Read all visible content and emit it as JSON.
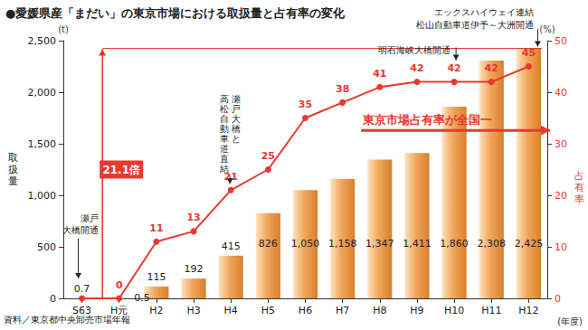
{
  "chart_data": {
    "type": "bar",
    "title": "●愛媛県産「まだい」の東京市場における取扱量と占有率の変化",
    "categories": [
      "S63",
      "H元",
      "H2",
      "H3",
      "H4",
      "H5",
      "H6",
      "H7",
      "H8",
      "H9",
      "H10",
      "H11",
      "H12"
    ],
    "x_label": "(年度)",
    "y_label": "取扱量",
    "y_unit": "(t)",
    "y2_label": "占有率",
    "y2_unit": "(%)",
    "series": [
      {
        "type": "bar",
        "color": "#f2a65a",
        "values": [
          0.7,
          0.5,
          115,
          192,
          415,
          826,
          1050,
          1158,
          1347,
          1411,
          1860,
          2308,
          2425
        ],
        "value_labels": [
          "0.7",
          "0.5",
          "115",
          "192",
          "415",
          "826",
          "1,050",
          "1,158",
          "1,347",
          "1,411",
          "1,860",
          "2,308",
          "2,425"
        ],
        "data_labels": true
      },
      {
        "type": "line",
        "axis": "y2",
        "color": "#e8382f",
        "marker": "circle",
        "values": [
          0,
          0,
          11,
          13,
          21,
          25,
          35,
          38,
          41,
          42,
          42,
          42,
          45
        ],
        "value_labels": [
          null,
          "0",
          "11",
          "13",
          "21",
          "25",
          "35",
          "38",
          "41",
          "42",
          "42",
          "42",
          "45"
        ],
        "data_labels": true
      }
    ],
    "ylim": [
      0,
      2500
    ],
    "yticks": [
      0,
      500,
      {
        "value": 1000,
        "label": "1,000"
      },
      {
        "value": 1500,
        "label": "1,500"
      },
      {
        "value": 2000,
        "label": "2,000"
      },
      {
        "value": 2500,
        "label": "2,500"
      }
    ],
    "y2lim": [
      0,
      50
    ],
    "y2ticks": [
      0,
      10,
      20,
      30,
      40,
      50
    ],
    "grid": false,
    "annotations": [
      {
        "text": "瀬戸\n大橋開通",
        "category": "S63"
      },
      {
        "text": "瀬戸大橋と\n高松自動車道直結",
        "category": "H4"
      },
      {
        "text": "明石海峡大橋開通",
        "category": "H10"
      },
      {
        "text": "エックスハイウェイ連結\n松山自動車道伊予～大洲開通",
        "category": "H12"
      },
      {
        "text": "東京市場占有率が全国一",
        "category": "H8"
      },
      {
        "text": "21.1倍",
        "category": "H元"
      }
    ],
    "source": "資料／東京都中央卸売市場年報"
  }
}
